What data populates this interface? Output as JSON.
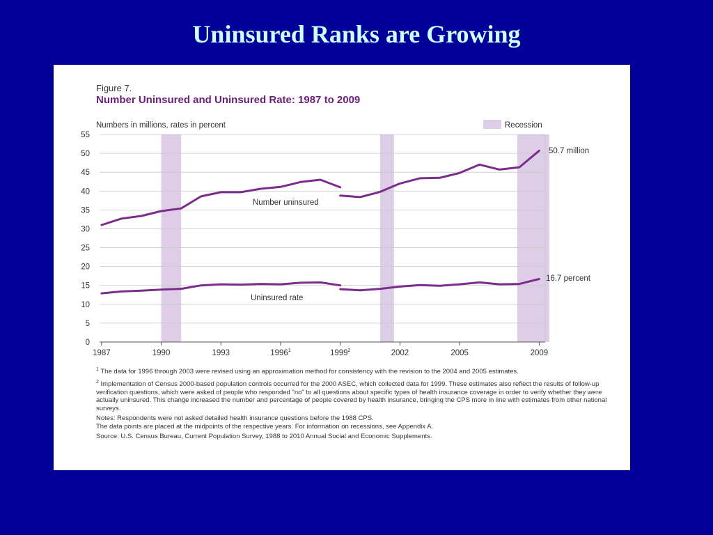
{
  "slide": {
    "title": "Uninsured Ranks are Growing"
  },
  "figure": {
    "label": "Figure 7.",
    "title": "Number Uninsured and Uninsured Rate: 1987 to 2009",
    "units_note": "Numbers in millions, rates in percent",
    "footnotes": [
      {
        "mark": "1",
        "text": "The data for 1996 through 2003 were revised using an approximation method for consistency with the revision to the 2004 and 2005 estimates."
      },
      {
        "mark": "2",
        "text": "Implementation of Census 2000-based population controls occurred for the 2000 ASEC, which collected data for 1999.  These estimates also reflect the results of follow-up verification questions, which were asked of people who responded \"no\" to all questions about specific types of health insurance coverage in order to verify whether they were actually uninsured.  This change increased the number and percentage of people covered by health insurance, bringing the CPS more in line with estimates from other national surveys."
      },
      {
        "mark": "",
        "text": "Notes: Respondents were not asked detailed health insurance questions before the 1988 CPS."
      },
      {
        "mark": "",
        "text": "The data points are placed at the midpoints of the respective years. For information on recessions, see Appendix A."
      },
      {
        "mark": "",
        "text": "Source: U.S. Census Bureau, Current Population Survey, 1988 to 2010 Annual Social and Economic Supplements."
      }
    ]
  },
  "chart_data": {
    "type": "line",
    "title": "Number Uninsured and Uninsured Rate: 1987 to 2009",
    "ylim": [
      0,
      55
    ],
    "y_ticks": [
      0,
      5,
      10,
      15,
      20,
      25,
      30,
      35,
      40,
      45,
      50,
      55
    ],
    "xlim": [
      1987,
      2009
    ],
    "x_ticks": [
      {
        "value": 1987,
        "label": "1987",
        "sup": ""
      },
      {
        "value": 1990,
        "label": "1990",
        "sup": ""
      },
      {
        "value": 1993,
        "label": "1993",
        "sup": ""
      },
      {
        "value": 1996,
        "label": "1996",
        "sup": "1"
      },
      {
        "value": 1999,
        "label": "1999",
        "sup": "2"
      },
      {
        "value": 2002,
        "label": "2002",
        "sup": ""
      },
      {
        "value": 2005,
        "label": "2005",
        "sup": ""
      },
      {
        "value": 2009,
        "label": "2009",
        "sup": ""
      }
    ],
    "legend": {
      "label": "Recession",
      "position": "top-right",
      "color": "#ddcde6"
    },
    "recessions": [
      [
        1990,
        1991
      ],
      [
        2001,
        2001.7
      ],
      [
        2007.9,
        2009.5
      ]
    ],
    "line_color": "#7b2d8b",
    "series": [
      {
        "name": "Number uninsured",
        "end_label": "50.7 million",
        "segments": [
          {
            "x": [
              1987,
              1988,
              1989,
              1990,
              1991,
              1992,
              1993,
              1994,
              1995,
              1996,
              1997,
              1998,
              1999
            ],
            "y": [
              31.0,
              32.7,
              33.4,
              34.7,
              35.4,
              38.6,
              39.7,
              39.7,
              40.6,
              41.1,
              42.4,
              43.0,
              41.0
            ]
          },
          {
            "x": [
              1999,
              2000,
              2001,
              2002,
              2003,
              2004,
              2005,
              2006,
              2007,
              2008,
              2009
            ],
            "y": [
              38.8,
              38.4,
              39.8,
              42.0,
              43.4,
              43.5,
              44.8,
              47.0,
              45.7,
              46.3,
              50.7
            ]
          }
        ]
      },
      {
        "name": "Uninsured rate",
        "end_label": "16.7 percent",
        "segments": [
          {
            "x": [
              1987,
              1988,
              1989,
              1990,
              1991,
              1992,
              1993,
              1994,
              1995,
              1996,
              1997,
              1998,
              1999
            ],
            "y": [
              12.9,
              13.4,
              13.6,
              13.9,
              14.1,
              15.0,
              15.3,
              15.2,
              15.4,
              15.3,
              15.7,
              15.8,
              15.0
            ]
          },
          {
            "x": [
              1999,
              2000,
              2001,
              2002,
              2003,
              2004,
              2005,
              2006,
              2007,
              2008,
              2009
            ],
            "y": [
              14.0,
              13.7,
              14.1,
              14.7,
              15.1,
              14.9,
              15.3,
              15.8,
              15.3,
              15.4,
              16.7
            ]
          }
        ]
      }
    ]
  }
}
